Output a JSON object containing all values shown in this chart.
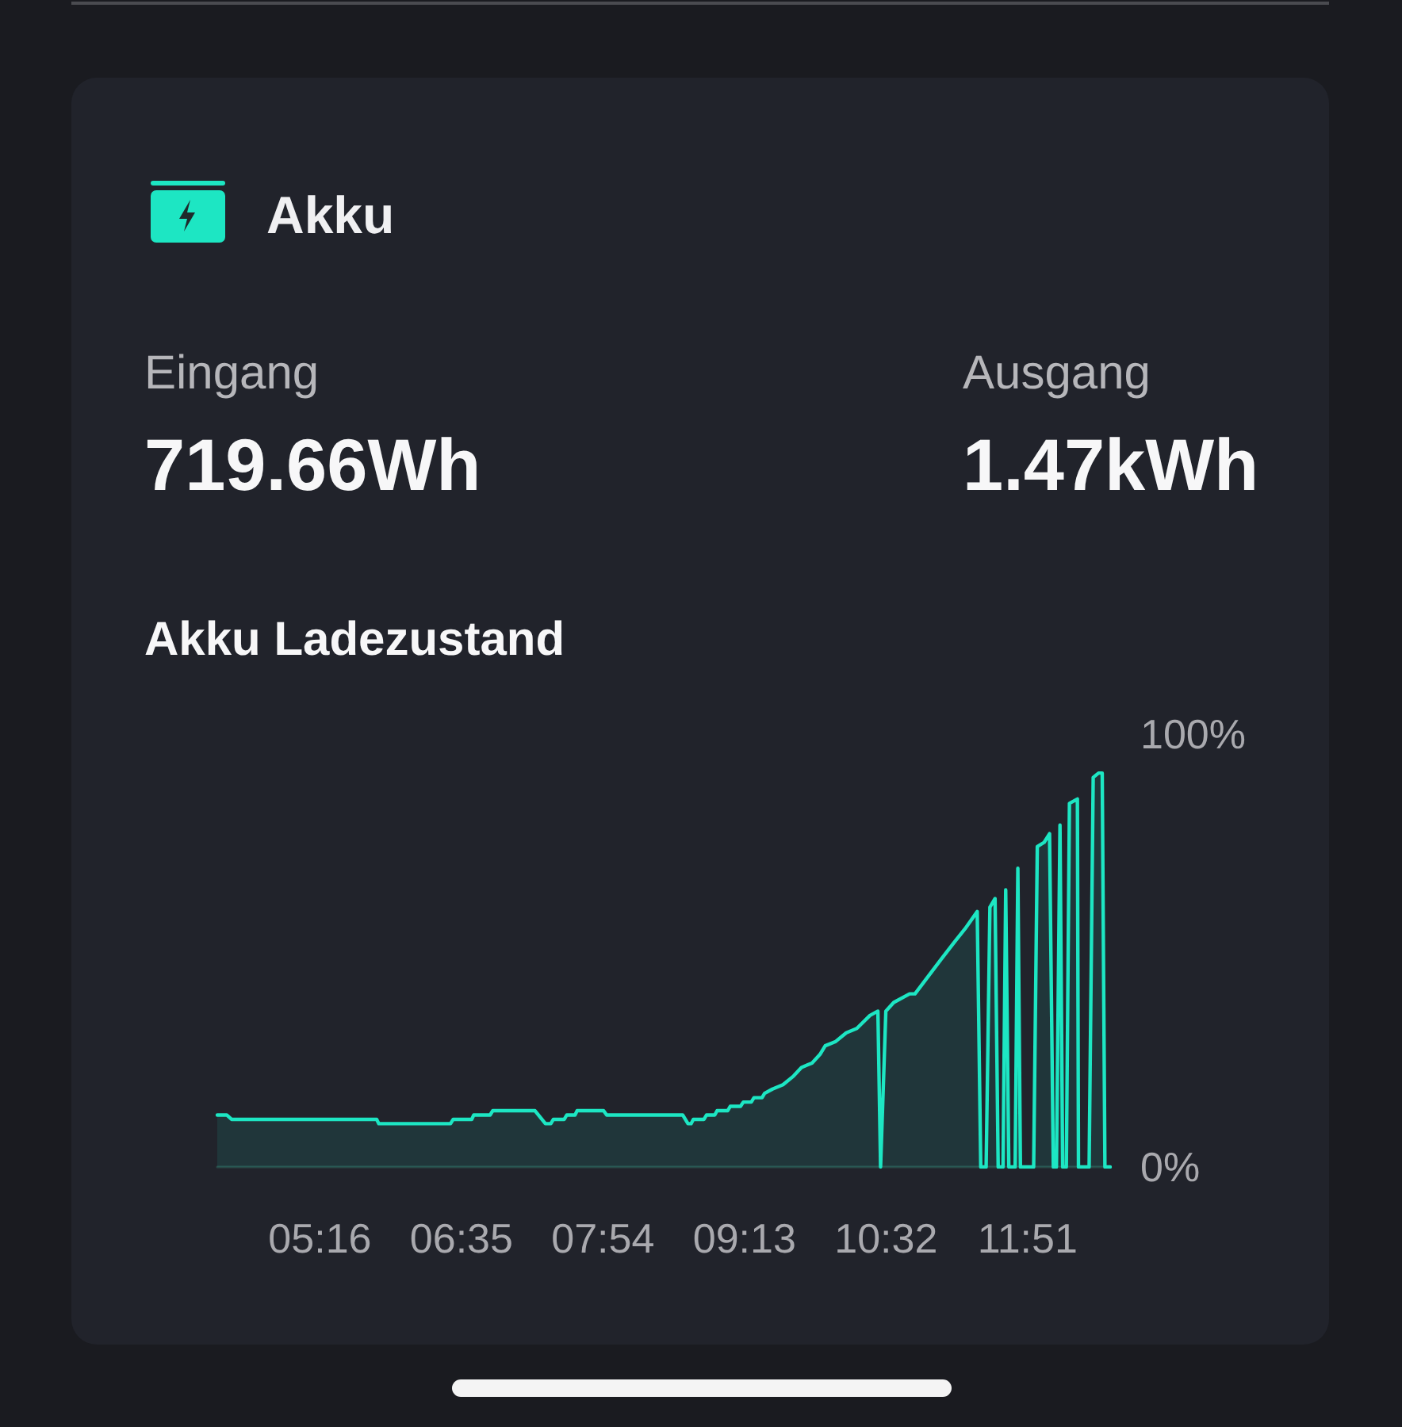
{
  "chart_data": {
    "type": "area",
    "title": "Akku",
    "subtitle": "Akku Ladezustand",
    "annotations": [
      "Eingang",
      "719.66Wh",
      "Ausgang",
      "1.47kWh"
    ],
    "x": [
      4.312,
      4.4,
      4.445,
      5.795,
      5.815,
      6.482,
      6.507,
      6.679,
      6.698,
      6.85,
      6.875,
      7.268,
      7.365,
      7.415,
      7.439,
      7.54,
      7.563,
      7.64,
      7.66,
      7.906,
      7.935,
      8.642,
      8.691,
      8.72,
      8.741,
      8.84,
      8.863,
      8.94,
      8.962,
      9.06,
      9.084,
      9.18,
      9.206,
      9.28,
      9.305,
      9.38,
      9.404,
      9.477,
      9.575,
      9.673,
      9.747,
      9.845,
      9.919,
      9.968,
      10.066,
      10.164,
      10.262,
      10.384,
      10.458,
      10.483,
      10.532,
      10.605,
      10.753,
      10.803,
      11.047,
      11.171,
      11.268,
      11.382,
      11.415,
      11.465,
      11.5,
      11.548,
      11.577,
      11.622,
      11.647,
      11.676,
      11.735,
      11.76,
      11.784,
      11.907,
      11.941,
      12.005,
      12.055,
      12.09,
      12.119,
      12.152,
      12.177,
      12.211,
      12.24,
      12.314,
      12.324,
      12.423,
      12.461,
      12.511,
      12.545,
      12.57,
      12.619
    ],
    "series": [
      {
        "color": "#1de6c3",
        "values": [
          12,
          12,
          11,
          11,
          10,
          10,
          11,
          11,
          12,
          12,
          13,
          13,
          10,
          10,
          11,
          11,
          12,
          12,
          13,
          13,
          12,
          12,
          10,
          10,
          11,
          11,
          12,
          12,
          13,
          13,
          14,
          14,
          15,
          15,
          16,
          16,
          17,
          18,
          19,
          21,
          23,
          24,
          26,
          28,
          29,
          31,
          32,
          35,
          36,
          0,
          36,
          38,
          40,
          40,
          48,
          52,
          55,
          59,
          0,
          0,
          60,
          62,
          0,
          0,
          64,
          0,
          0,
          69,
          0,
          0,
          74,
          75,
          77,
          0,
          0,
          79,
          0,
          0,
          84,
          85,
          0,
          0,
          90,
          91,
          91,
          0,
          0
        ]
      }
    ],
    "xlim": [
      4.312,
      12.619
    ],
    "xticks": [
      {
        "value": 5.2667,
        "label": "05:16"
      },
      {
        "value": 6.5833,
        "label": "06:35"
      },
      {
        "value": 7.9,
        "label": "07:54"
      },
      {
        "value": 9.2167,
        "label": "09:13"
      },
      {
        "value": 10.5333,
        "label": "10:32"
      },
      {
        "value": 11.85,
        "label": "11:51"
      }
    ],
    "ylim": [
      0,
      100
    ],
    "yticks": [
      {
        "value": 0,
        "label": "0%"
      },
      {
        "value": 100,
        "label": "100%"
      }
    ],
    "marker": "none",
    "line_style": "solid"
  }
}
